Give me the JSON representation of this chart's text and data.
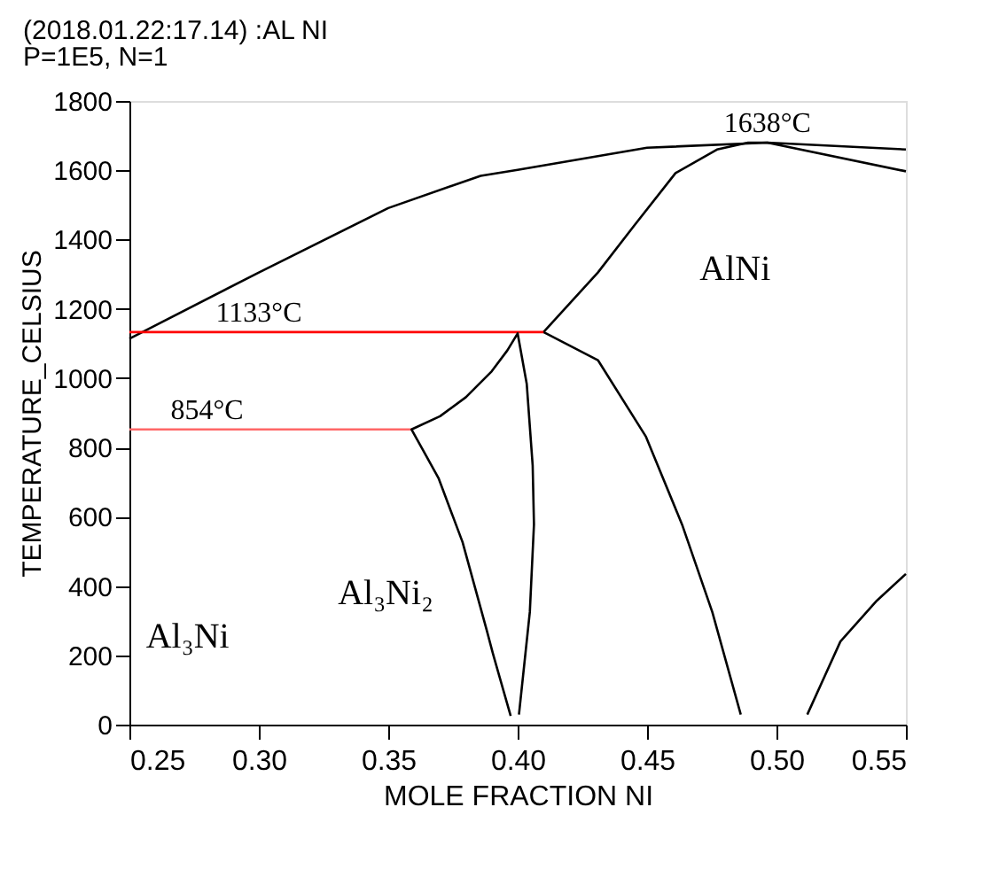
{
  "chart_data": {
    "type": "line",
    "title": "(2018.01.22:17.14) :AL NI",
    "subtitle": "P=1E5, N=1",
    "xlabel": "MOLE FRACTION NI",
    "ylabel": "TEMPERATURE_CELSIUS",
    "xlim": [
      0.25,
      0.55
    ],
    "ylim": [
      0,
      1800
    ],
    "xticks": [
      0.25,
      {
        "value": 0.3,
        "label": "0.30"
      },
      0.35,
      {
        "value": 0.4,
        "label": "0.40"
      },
      0.45,
      {
        "value": 0.5,
        "label": "0.50"
      },
      0.55
    ],
    "yticks": [
      0,
      200,
      400,
      600,
      800,
      1000,
      1200,
      1400,
      1600,
      1800
    ],
    "grid": false,
    "marker": "none",
    "line_style": "solid",
    "series": [
      {
        "color": "#000000",
        "x": [
          0.25,
          0.3,
          0.35,
          0.3857,
          0.4,
          0.45,
          0.4965,
          0.55
        ],
        "values": [
          1114,
          1305,
          1491,
          1584,
          1601,
          1665,
          1680,
          1660
        ]
      },
      {
        "color": "#000000",
        "x": [
          0.4862,
          0.4752,
          0.4635,
          0.4495,
          0.431,
          0.41,
          0.431,
          0.445,
          0.461,
          0.477,
          0.489,
          0.4965,
          0.55
        ],
        "values": [
          29,
          325,
          578,
          832,
          1052,
          1133,
          1305,
          1440,
          1592,
          1660,
          1680,
          1680,
          1597
        ]
      },
      {
        "color": "#ff0000",
        "x": [
          0.25,
          0.41
        ],
        "values": [
          1133,
          1133
        ]
      },
      {
        "color": "#ff6666",
        "x": [
          0.25,
          0.359
        ],
        "values": [
          852,
          852
        ]
      },
      {
        "color": "#000000",
        "x": [
          0.3973,
          0.3904,
          0.388,
          0.3787,
          0.3694,
          0.359,
          0.37,
          0.38,
          0.39,
          0.396,
          0.4,
          0.4035,
          0.4058,
          0.4063,
          0.4047,
          0.4005
        ],
        "values": [
          25,
          206,
          274,
          527,
          712,
          852,
          890,
          945,
          1020,
          1080,
          1129,
          984,
          748,
          578,
          325,
          29
        ]
      },
      {
        "color": "#000000",
        "x": [
          0.5119,
          0.5247,
          0.5388,
          0.55
        ],
        "values": [
          29,
          240,
          358,
          435
        ]
      }
    ],
    "annotations": [
      {
        "text": "1638°C",
        "x": 0.4965,
        "y": 1680
      },
      {
        "text": "1133°C",
        "x": 0.3,
        "y": 1133
      },
      {
        "text": "854°C",
        "x": 0.28,
        "y": 852
      },
      "AlNi",
      "Al₃Ni₂",
      "Al₃Ni"
    ]
  }
}
